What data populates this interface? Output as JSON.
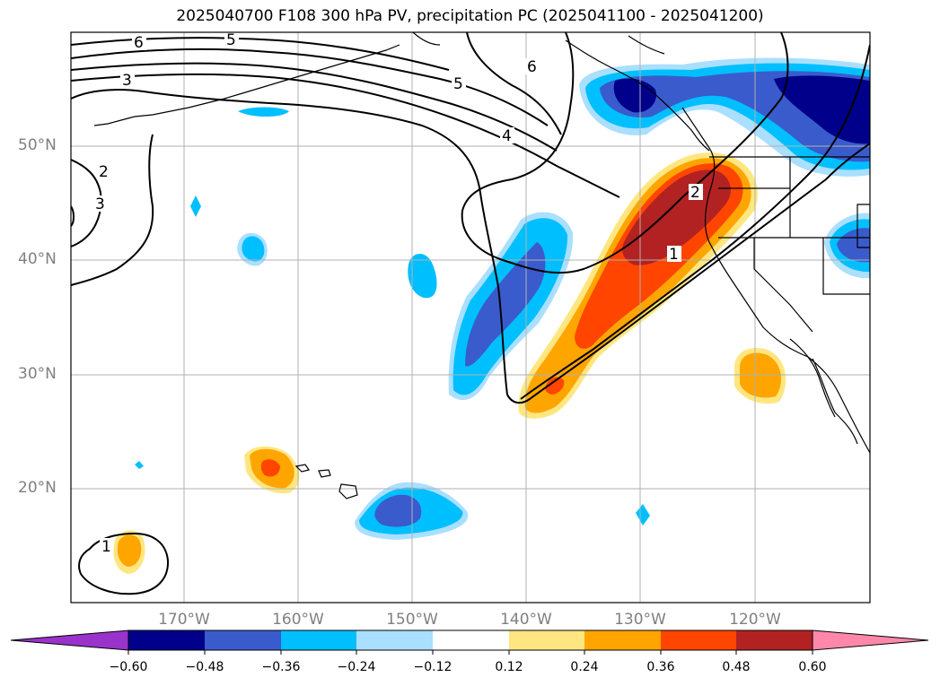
{
  "title": "2025040700 F108 300 hPa PV, precipitation PC (2025041100 - 2025041200)",
  "lat_labels": [
    "50°N",
    "40°N",
    "30°N",
    "20°N"
  ],
  "lon_labels": [
    "170°W",
    "160°W",
    "150°W",
    "140°W",
    "130°W",
    "120°W"
  ],
  "contour_labels": [
    "6",
    "5",
    "3",
    "5",
    "6",
    "4",
    "2",
    "3",
    "2",
    "1",
    "1"
  ],
  "colorbar": {
    "ticks": [
      "−0.60",
      "−0.48",
      "−0.36",
      "−0.24",
      "−0.12",
      "0.12",
      "0.24",
      "0.36",
      "0.48",
      "0.60"
    ],
    "colors": [
      "#9933cc",
      "#00008b",
      "#3a5bcc",
      "#00bfff",
      "#aadfff",
      "#ffffff",
      "#ffe680",
      "#ffa500",
      "#ff4500",
      "#b22222",
      "#ff88aa"
    ]
  },
  "colors": {
    "dark_blue": "#00008b",
    "blue": "#3a5bcc",
    "sky": "#00bfff",
    "light_sky": "#aadfff",
    "yellow": "#ffe680",
    "orange": "#ffa500",
    "red_orange": "#ff4500",
    "firebrick": "#b22222"
  }
}
